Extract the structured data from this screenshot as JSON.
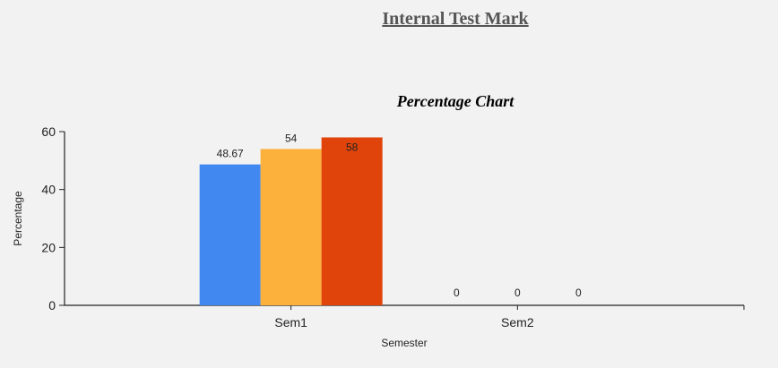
{
  "page": {
    "title": "Internal Test Mark"
  },
  "chart_data": {
    "type": "bar",
    "title": "Percentage Chart",
    "xlabel": "Semester",
    "ylabel": "Percentage",
    "categories": [
      "Sem1",
      "Sem2"
    ],
    "ylim": [
      0,
      60
    ],
    "yticks": [
      0,
      20,
      40,
      60
    ],
    "grid": false,
    "legend": "none",
    "series": [
      {
        "values": [
          48.67,
          0
        ],
        "labels": [
          "48.67",
          "0"
        ],
        "color": "#4189f0"
      },
      {
        "values": [
          54,
          0
        ],
        "labels": [
          "54",
          "0"
        ],
        "color": "#fbb13c"
      },
      {
        "values": [
          58,
          0
        ],
        "labels": [
          "58",
          "0"
        ],
        "color": "#e1440a"
      }
    ]
  }
}
